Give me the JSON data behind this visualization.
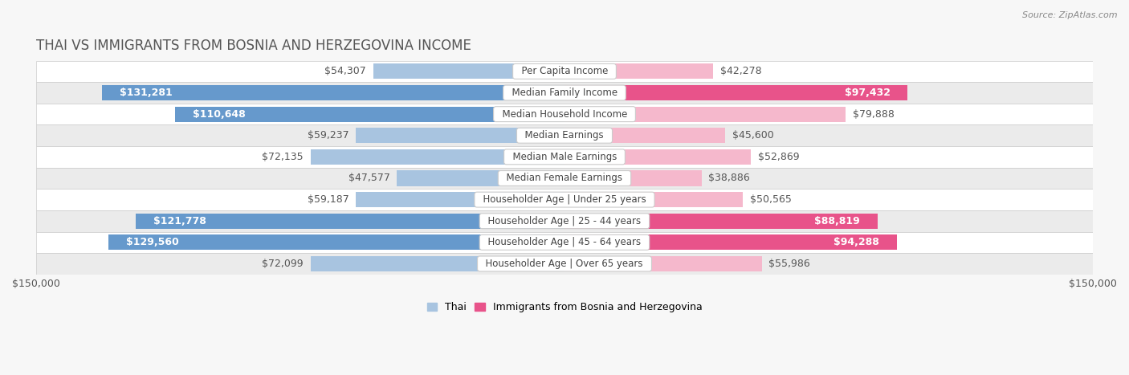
{
  "title": "THAI VS IMMIGRANTS FROM BOSNIA AND HERZEGOVINA INCOME",
  "source": "Source: ZipAtlas.com",
  "categories": [
    "Per Capita Income",
    "Median Family Income",
    "Median Household Income",
    "Median Earnings",
    "Median Male Earnings",
    "Median Female Earnings",
    "Householder Age | Under 25 years",
    "Householder Age | 25 - 44 years",
    "Householder Age | 45 - 64 years",
    "Householder Age | Over 65 years"
  ],
  "thai_values": [
    54307,
    131281,
    110648,
    59237,
    72135,
    47577,
    59187,
    121778,
    129560,
    72099
  ],
  "bosnia_values": [
    42278,
    97432,
    79888,
    45600,
    52869,
    38886,
    50565,
    88819,
    94288,
    55986
  ],
  "thai_labels": [
    "$54,307",
    "$131,281",
    "$110,648",
    "$59,237",
    "$72,135",
    "$47,577",
    "$59,187",
    "$121,778",
    "$129,560",
    "$72,099"
  ],
  "bosnia_labels": [
    "$42,278",
    "$97,432",
    "$79,888",
    "$45,600",
    "$52,869",
    "$38,886",
    "$50,565",
    "$88,819",
    "$94,288",
    "$55,986"
  ],
  "thai_color_light": "#a8c4e0",
  "thai_color_dark": "#6699cc",
  "bosnia_color_light": "#f5b8cc",
  "bosnia_color_dark": "#e8538a",
  "thai_label_threshold": 100000,
  "bosnia_label_threshold": 88000,
  "max_value": 150000,
  "xlabel_left": "$150,000",
  "xlabel_right": "$150,000",
  "bar_height": 0.72,
  "background_color": "#f7f7f7",
  "row_colors": [
    "#ffffff",
    "#ebebeb"
  ],
  "legend_thai": "Thai",
  "legend_bosnia": "Immigrants from Bosnia and Herzegovina",
  "label_fontsize": 9,
  "category_fontsize": 8.5,
  "title_fontsize": 12,
  "title_color": "#555555"
}
